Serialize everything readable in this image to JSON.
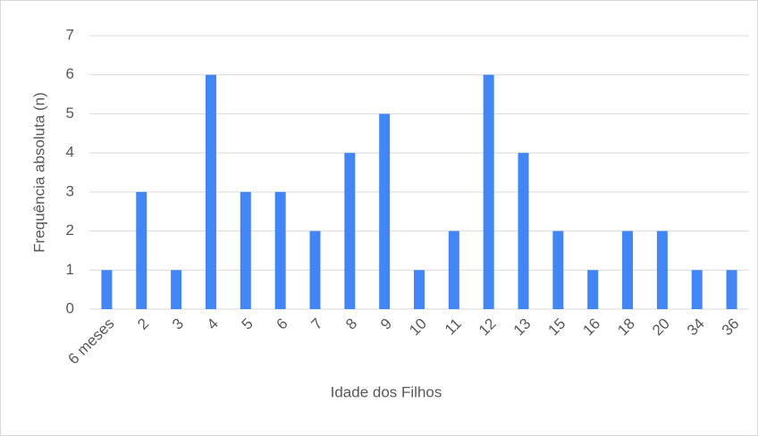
{
  "chart_data": {
    "type": "bar",
    "x_label": "Idade dos Filhos",
    "y_label": "Frequência absoluta (n)",
    "categories": [
      "6 meses",
      "2",
      "3",
      "4",
      "5",
      "6",
      "7",
      "8",
      "9",
      "10",
      "11",
      "12",
      "13",
      "15",
      "16",
      "18",
      "20",
      "34",
      "36"
    ],
    "values": [
      1,
      3,
      1,
      6,
      3,
      3,
      2,
      4,
      5,
      1,
      2,
      6,
      4,
      2,
      1,
      2,
      2,
      1,
      1
    ],
    "color": "#4285f4",
    "ylim": [
      0,
      7
    ],
    "yticks": [
      0,
      1,
      2,
      3,
      4,
      5,
      6,
      7
    ],
    "grid": true
  }
}
